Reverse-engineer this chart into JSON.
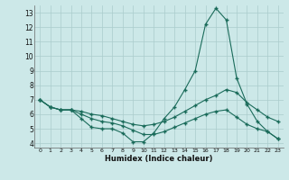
{
  "xlabel": "Humidex (Indice chaleur)",
  "bg_color": "#cce8e8",
  "grid_color": "#aacccc",
  "line_color": "#1a6b5a",
  "xlim": [
    -0.5,
    23.5
  ],
  "ylim": [
    3.7,
    13.5
  ],
  "xticks": [
    0,
    1,
    2,
    3,
    4,
    5,
    6,
    7,
    8,
    9,
    10,
    11,
    12,
    13,
    14,
    15,
    16,
    17,
    18,
    19,
    20,
    21,
    22,
    23
  ],
  "yticks": [
    4,
    5,
    6,
    7,
    8,
    9,
    10,
    11,
    12,
    13
  ],
  "line1_x": [
    0,
    1,
    2,
    3,
    4,
    5,
    6,
    7,
    8,
    9,
    10,
    11,
    12,
    13,
    14,
    15,
    16,
    17,
    18,
    19,
    20,
    21,
    22,
    23
  ],
  "line1_y": [
    7.0,
    6.5,
    6.3,
    6.3,
    5.7,
    5.1,
    5.0,
    5.0,
    4.7,
    4.1,
    4.1,
    4.7,
    5.7,
    6.5,
    7.7,
    9.0,
    12.2,
    13.3,
    12.5,
    8.5,
    6.7,
    5.5,
    4.8,
    4.3
  ],
  "line2_x": [
    0,
    1,
    2,
    3,
    4,
    5,
    6,
    7,
    8,
    9,
    10,
    11,
    12,
    13,
    14,
    15,
    16,
    17,
    18,
    19,
    20,
    21,
    22,
    23
  ],
  "line2_y": [
    7.0,
    6.5,
    6.3,
    6.3,
    6.2,
    6.0,
    5.9,
    5.7,
    5.5,
    5.3,
    5.2,
    5.3,
    5.5,
    5.8,
    6.2,
    6.6,
    7.0,
    7.3,
    7.7,
    7.5,
    6.8,
    6.3,
    5.8,
    5.5
  ],
  "line3_x": [
    0,
    1,
    2,
    3,
    4,
    5,
    6,
    7,
    8,
    9,
    10,
    11,
    12,
    13,
    14,
    15,
    16,
    17,
    18,
    19,
    20,
    21,
    22,
    23
  ],
  "line3_y": [
    7.0,
    6.5,
    6.3,
    6.3,
    6.0,
    5.7,
    5.5,
    5.4,
    5.2,
    4.9,
    4.6,
    4.6,
    4.8,
    5.1,
    5.4,
    5.7,
    6.0,
    6.2,
    6.3,
    5.8,
    5.3,
    5.0,
    4.8,
    4.3
  ]
}
